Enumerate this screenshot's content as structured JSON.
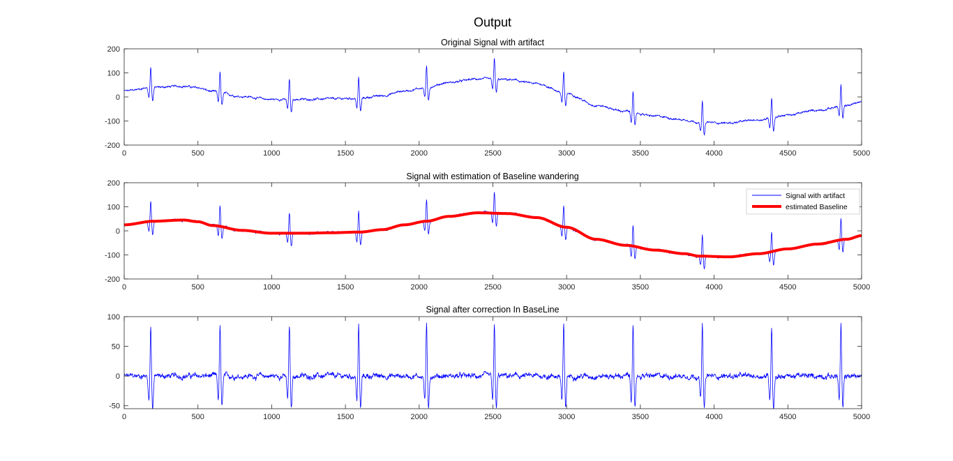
{
  "figure": {
    "title": "Output"
  },
  "chart_data": [
    {
      "type": "line",
      "title": "Original Signal with artifact",
      "xlabel": "",
      "ylabel": "",
      "xlim": [
        0,
        5000
      ],
      "ylim": [
        -200,
        200
      ],
      "xticks": [
        0,
        500,
        1000,
        1500,
        2000,
        2500,
        3000,
        3500,
        4000,
        4500,
        5000
      ],
      "yticks": [
        -200,
        -100,
        0,
        100,
        200
      ],
      "grid": false,
      "series": [
        {
          "key": "signal",
          "color": "#0000ff",
          "baseline_points": [
            [
              0,
              25
            ],
            [
              200,
              40
            ],
            [
              400,
              45
            ],
            [
              500,
              38
            ],
            [
              600,
              22
            ],
            [
              800,
              2
            ],
            [
              1000,
              -10
            ],
            [
              1200,
              -10
            ],
            [
              1400,
              -8
            ],
            [
              1600,
              -5
            ],
            [
              1750,
              5
            ],
            [
              1900,
              25
            ],
            [
              2050,
              40
            ],
            [
              2200,
              60
            ],
            [
              2400,
              75
            ],
            [
              2600,
              72
            ],
            [
              2800,
              55
            ],
            [
              3000,
              15
            ],
            [
              3200,
              -35
            ],
            [
              3400,
              -60
            ],
            [
              3600,
              -80
            ],
            [
              3800,
              -95
            ],
            [
              3900,
              -105
            ],
            [
              4100,
              -108
            ],
            [
              4300,
              -95
            ],
            [
              4500,
              -75
            ],
            [
              4700,
              -55
            ],
            [
              4900,
              -35
            ],
            [
              5000,
              -20
            ]
          ],
          "beats": [
            180,
            650,
            1120,
            1590,
            2050,
            2510,
            2980,
            3450,
            3920,
            4390,
            4860
          ]
        }
      ]
    },
    {
      "type": "line",
      "title": "Signal with estimation of Baseline wandering",
      "xlabel": "",
      "ylabel": "",
      "xlim": [
        0,
        5000
      ],
      "ylim": [
        -200,
        200
      ],
      "xticks": [
        0,
        500,
        1000,
        1500,
        2000,
        2500,
        3000,
        3500,
        4000,
        4500,
        5000
      ],
      "yticks": [
        -200,
        -100,
        0,
        100,
        200
      ],
      "grid": false,
      "legend": {
        "placement": "top-right"
      },
      "series": [
        {
          "key": "signal",
          "name": "Signal with artifact",
          "color": "#0000ff"
        },
        {
          "key": "baseline",
          "name": "estimated Baseline",
          "color": "#ff0000"
        }
      ]
    },
    {
      "type": "line",
      "title": "Signal after correction In BaseLine",
      "xlabel": "",
      "ylabel": "",
      "xlim": [
        0,
        5000
      ],
      "ylim": [
        -55,
        100
      ],
      "xticks": [
        0,
        500,
        1000,
        1500,
        2000,
        2500,
        3000,
        3500,
        4000,
        4500,
        5000
      ],
      "yticks": [
        -50,
        0,
        50,
        100
      ],
      "grid": false,
      "series": [
        {
          "key": "corrected",
          "color": "#0000ff"
        }
      ]
    }
  ]
}
